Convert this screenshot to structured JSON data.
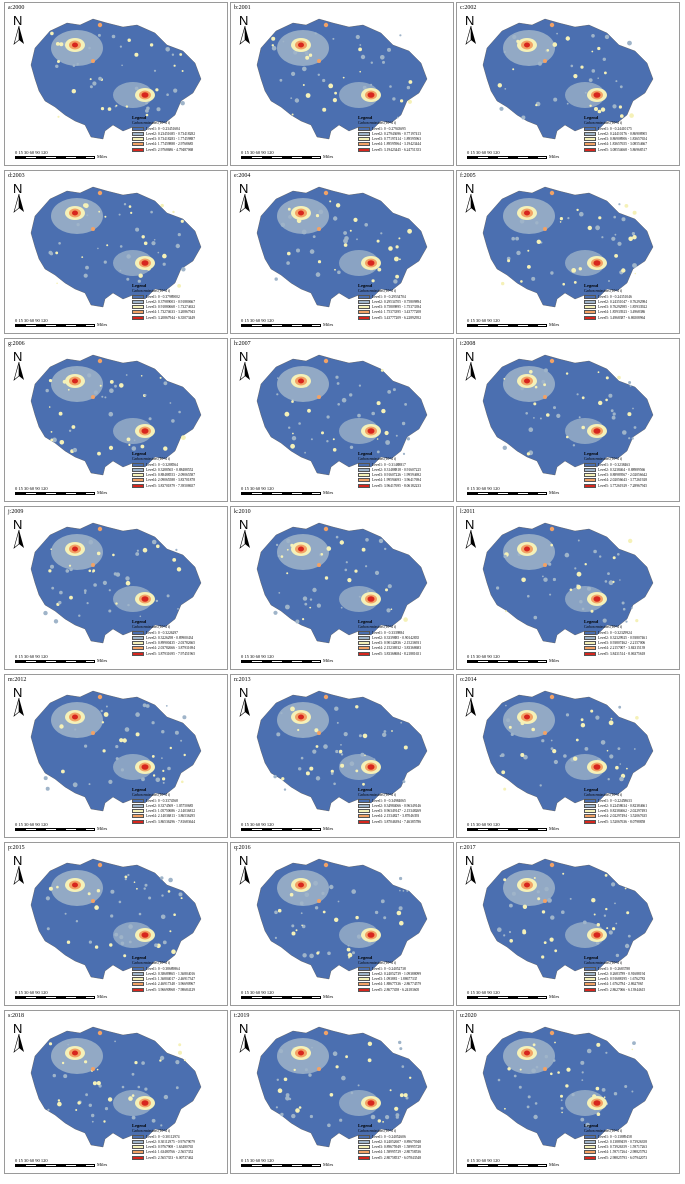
{
  "legend_title": "Legend",
  "legend_subtitle": "Carbon emissions (10^4 t)",
  "scale_numbers": "0  15 30      60      90     120",
  "scale_units": "Miles",
  "north_letter": "N",
  "level_colors": [
    "#4b6fb0",
    "#9fb4c9",
    "#f5f1b8",
    "#f2a266",
    "#d7261e"
  ],
  "panels": [
    {
      "label": "a:2000",
      "year": 2000,
      "levels": [
        "Level1: 0 - 0.23451684",
        "Level2: 0.23451685 - 0.73418282",
        "Level3: 0.73418283 - 1.77459887",
        "Level4: 1.77459888 - 2.9768685",
        "Level5: 2.9768686 - 4.79487068"
      ]
    },
    {
      "label": "b:2001",
      "year": 2001,
      "levels": [
        "Level1: 0 - 0.27943695",
        "Level2: 0.27943696 - 0.77197413",
        "Level3: 0.77197414 - 1.89595963",
        "Level4: 1.89595964 - 3.19423444",
        "Level5: 3.19423445 - 6.24751353"
      ]
    },
    {
      "label": "c:2002",
      "year": 2002,
      "levels": [
        "Level1: 0 - 0.24410175",
        "Level2: 0.24410176 - 0.86908905",
        "Level3: 0.86908906 - 1.83657654",
        "Level4: 1.83657655 - 3.08554667",
        "Level5: 3.08554668 - 5.86968517"
      ]
    },
    {
      "label": "d:2003",
      "year": 2003,
      "levels": [
        "Level1: 0 - 0.37989002",
        "Level2: 0.37989003 - 0.91880667",
        "Level3: 0.91880668 - 1.73274632",
        "Level4: 1.73274633 - 3.20867943",
        "Level5: 3.20867944 - 6.35073449"
      ]
    },
    {
      "label": "e:2004",
      "year": 2004,
      "levels": [
        "Level1: 0 - 0.29534704",
        "Level2: 0.29534705 - 0.75809894",
        "Level3: 0.75809895 - 1.75373394",
        "Level4: 1.75373395 - 3.43777208",
        "Level5: 3.43777209 - 6.22892952"
      ]
    },
    {
      "label": "f:2005",
      "year": 2005,
      "levels": [
        "Level1: 0 - 0.24351046",
        "Level2: 0.24351047 - 0.76292984",
        "Level3: 0.76292985 - 1.85933922",
        "Level4: 1.85933923 - 3.4968386",
        "Level5: 3.4968387 - 6.86508964"
      ]
    },
    {
      "label": "g:2006",
      "year": 2006,
      "levels": [
        "Level1: 0 - 0.3288564",
        "Level2: 0.3288565 - 0.88488552",
        "Level3: 0.88488553 - 2.09065587",
        "Level4: 2.09065588 - 3.83701878",
        "Level5: 3.83701879 - 7.39508657"
      ]
    },
    {
      "label": "h:2007",
      "year": 2007,
      "levels": [
        "Level1: 0 - 0.31488817",
        "Level2: 0.31488818 - 0.91607225",
        "Level3: 0.91607226 - 1.99594692",
        "Level4: 1.99594693 - 3.96417694",
        "Level5: 3.96417695 - 8.06182233"
      ]
    },
    {
      "label": "i:2008",
      "year": 2008,
      "levels": [
        "Level1: 0 - 0.3238463",
        "Level2: 0.3238464 - 0.88989566",
        "Level3: 0.88989567 - 2.02056642",
        "Level4: 2.02056643 - 3.77261928",
        "Level5: 3.77261929 - 7.28967945"
      ]
    },
    {
      "label": "j:2009",
      "year": 2009,
      "levels": [
        "Level1: 0 - 0.3226297",
        "Level2: 0.3226298 - 0.89900434",
        "Level3: 0.89900435 - 2.03782665",
        "Level4: 2.03782666 - 3.87931694",
        "Level5: 3.87931695 - 7.97451965"
      ]
    },
    {
      "label": "k:2010",
      "year": 2010,
      "levels": [
        "Level1: 0 - 0.3339884",
        "Level2: 0.3339885 - 0.90142835",
        "Level3: 0.90142836 - 2.15236931",
        "Level4: 2.15236932 - 3.83368683",
        "Level5: 3.83368684 - 8.21881651"
      ]
    },
    {
      "label": "l:2011",
      "year": 2011,
      "levels": [
        "Level1: 0 - 0.32329924",
        "Level2: 0.32329925 - 0.93807461",
        "Level3: 0.93807462 - 2.2157006",
        "Level4: 2.2157007 - 3.84315139",
        "Level5: 3.8431514 - 8.06375618"
      ]
    },
    {
      "label": "m:2012",
      "year": 2012,
      "levels": [
        "Level1: 0 - 0.3374568",
        "Level2: 0.3374569 - 1.05750685",
        "Level3: 1.05750686 - 2.14036812",
        "Level4: 2.14036813 - 3.86536295",
        "Level5: 3.86536296 - 7.81683644"
      ]
    },
    {
      "label": "n:2013",
      "year": 2013,
      "levels": [
        "Level1: 0 - 0.34984065",
        "Level2: 0.34984066 - 0.96349146",
        "Level3: 0.96349147 - 2.15348269",
        "Level4: 2.1534827 - 3.87046393",
        "Level5: 3.87046394 - 7.46385786"
      ]
    },
    {
      "label": "o:2014",
      "year": 2014,
      "levels": [
        "Level1: 0 - 0.22458633",
        "Level2: 0.22458634 - 0.82384661",
        "Level3: 0.82384662 - 2.02297493",
        "Level4: 2.02297494 - 3.52067635",
        "Level5: 3.52067636 - 8.0798858"
      ]
    },
    {
      "label": "p:2015",
      "year": 2015,
      "levels": [
        "Level1: 0 - 0.38689864",
        "Level2: 0.38689865 - 1.36804016",
        "Level3: 1.36804017 - 2.46917347",
        "Level4: 2.46917348 - 3.96690967",
        "Level5: 3.96690968 - 7.98684129"
      ]
    },
    {
      "label": "q:2016",
      "year": 2016,
      "levels": [
        "Level1: 0 - 0.24052738",
        "Level2: 0.24052739 - 1.09388099",
        "Level3: 1.093881 - 1.88677335",
        "Level4: 1.88677336 - 2.86774579",
        "Level5: 2.8677458 - 6.24183605"
      ]
    },
    {
      "label": "r:2017",
      "year": 2017,
      "levels": [
        "Level1: 0 - 0.2683788",
        "Level2: 0.2683789 - 0.91688194",
        "Level3: 0.91688195 - 1.6762783",
        "Level4: 1.6762784 - 2.8627065",
        "Level5: 2.8627066 - 6.13944615"
      ]
    },
    {
      "label": "s:2018",
      "year": 2018,
      "levels": [
        "Level1: 0 - 0.30112974",
        "Level2: 0.30112975 - 0.97679079",
        "Level3: 0.9767908 - 1.63480765",
        "Level4: 1.63480766 - 2.5657352",
        "Level5: 2.5657353 - 6.00737462"
      ]
    },
    {
      "label": "t:2019",
      "year": 2019,
      "levels": [
        "Level1: 0 - 0.24052606",
        "Level2: 0.24052607 - 0.89675948",
        "Level3: 0.89675949 - 1.58995728",
        "Level4: 1.58995729 - 2.80758536",
        "Level5: 2.80758537 - 6.07843548"
      ]
    },
    {
      "label": "u:2020",
      "year": 2020,
      "levels": [
        "Level1: 0 - 0.13889458",
        "Level2: 0.13889459 - 0.73926358",
        "Level3: 0.73926359 - 1.59717263",
        "Level4: 1.59717264 - 2.98825792",
        "Level5: 2.98825793 - 6.07942073"
      ]
    }
  ]
}
